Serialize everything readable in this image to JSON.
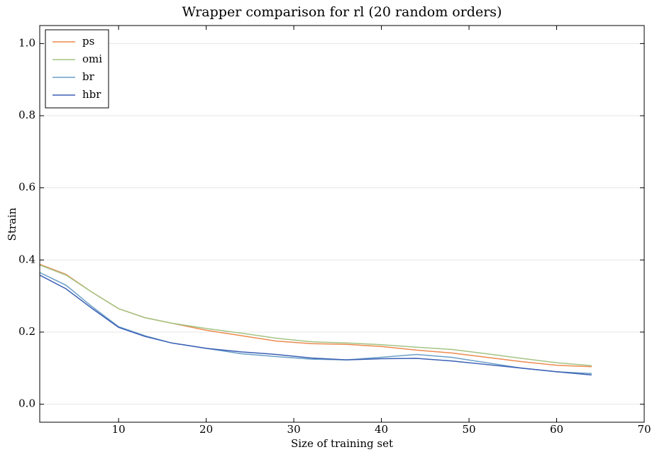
{
  "chart_data": {
    "type": "line",
    "title": "Wrapper comparison for rl (20 random orders)",
    "xlabel": "Size of training set",
    "ylabel": "Strain",
    "x": [
      1,
      4,
      7,
      10,
      13,
      16,
      20,
      24,
      28,
      32,
      36,
      40,
      44,
      48,
      52,
      56,
      60,
      64
    ],
    "series": [
      {
        "name": "ps",
        "color": "#ec8a4f",
        "values": [
          0.388,
          0.36,
          0.31,
          0.265,
          0.24,
          0.225,
          0.205,
          0.19,
          0.175,
          0.168,
          0.166,
          0.16,
          0.15,
          0.142,
          0.13,
          0.118,
          0.108,
          0.104
        ]
      },
      {
        "name": "omi",
        "color": "#a4c484",
        "values": [
          0.386,
          0.358,
          0.31,
          0.265,
          0.24,
          0.225,
          0.21,
          0.197,
          0.183,
          0.173,
          0.17,
          0.165,
          0.158,
          0.152,
          0.14,
          0.127,
          0.115,
          0.107
        ]
      },
      {
        "name": "br",
        "color": "#6a9fc8",
        "values": [
          0.365,
          0.33,
          0.27,
          0.215,
          0.19,
          0.17,
          0.155,
          0.14,
          0.132,
          0.125,
          0.123,
          0.13,
          0.138,
          0.13,
          0.115,
          0.1,
          0.09,
          0.085
        ]
      },
      {
        "name": "hbr",
        "color": "#3b5fb5",
        "values": [
          0.358,
          0.32,
          0.265,
          0.213,
          0.188,
          0.17,
          0.155,
          0.145,
          0.138,
          0.128,
          0.123,
          0.126,
          0.127,
          0.12,
          0.11,
          0.1,
          0.09,
          0.081
        ]
      }
    ],
    "xlim": [
      1,
      70
    ],
    "xticks": [
      10,
      20,
      30,
      40,
      50,
      60,
      70
    ],
    "ylim": [
      -0.05,
      1.05
    ],
    "yticks": [
      {
        "value": 0,
        "label": "0.0"
      },
      0.2,
      0.4,
      0.6,
      0.8,
      {
        "value": 1,
        "label": "1.0"
      }
    ],
    "grid": true,
    "legend": "upper-left"
  }
}
